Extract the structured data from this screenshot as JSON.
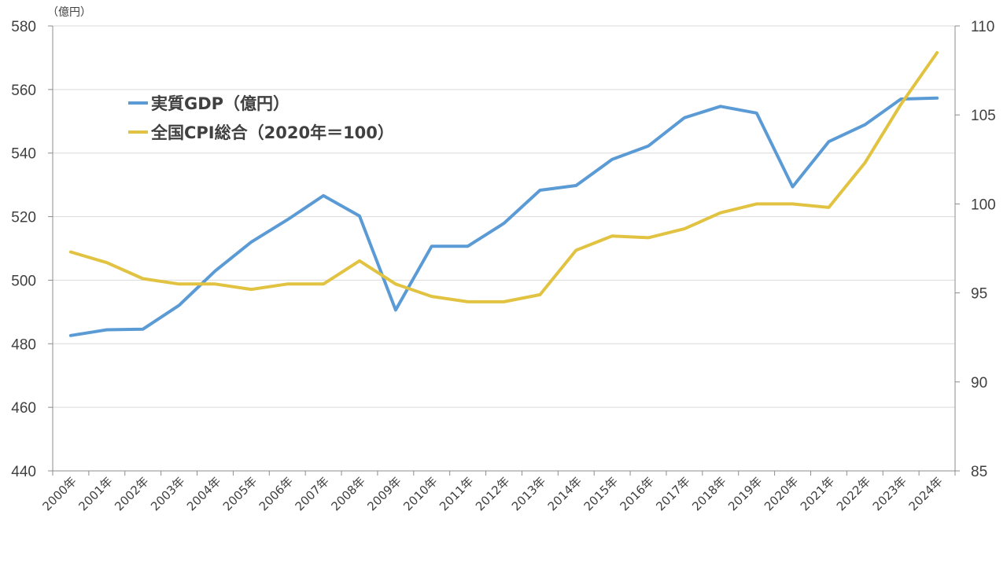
{
  "chart_data": {
    "type": "line",
    "y_unit_label": "（億円）",
    "categories": [
      "2000年",
      "2001年",
      "2002年",
      "2003年",
      "2004年",
      "2005年",
      "2006年",
      "2007年",
      "2008年",
      "2009年",
      "2010年",
      "2011年",
      "2012年",
      "2013年",
      "2014年",
      "2015年",
      "2016年",
      "2017年",
      "2018年",
      "2019年",
      "2020年",
      "2021年",
      "2022年",
      "2023年",
      "2024年"
    ],
    "y_left": {
      "min": 440,
      "max": 580,
      "step": 20,
      "ticks": [
        "440",
        "460",
        "480",
        "500",
        "520",
        "540",
        "560",
        "580"
      ]
    },
    "y_right": {
      "min": 85,
      "max": 110,
      "step": 5,
      "ticks": [
        "85",
        "90",
        "95",
        "100",
        "105",
        "110"
      ]
    },
    "grid": true,
    "legend_position": "upper-left",
    "series": [
      {
        "name": "実質GDP（億円）",
        "axis": "left",
        "color": "#5B9BD5",
        "values": [
          482.6,
          484.4,
          484.6,
          492.1,
          502.9,
          512.0,
          519.0,
          526.6,
          520.2,
          490.6,
          510.7,
          510.7,
          517.9,
          528.3,
          529.8,
          538.0,
          542.2,
          551.1,
          554.7,
          552.6,
          529.4,
          543.6,
          548.9,
          557.0,
          557.3
        ]
      },
      {
        "name": "全国CPI総合（2020年＝100）",
        "axis": "right",
        "color": "#E1C341",
        "values": [
          97.3,
          96.7,
          95.8,
          95.5,
          95.5,
          95.2,
          95.5,
          95.5,
          96.8,
          95.5,
          94.8,
          94.5,
          94.5,
          94.9,
          97.4,
          98.2,
          98.1,
          98.6,
          99.5,
          100.0,
          100.0,
          99.8,
          102.3,
          105.6,
          108.5
        ]
      }
    ]
  }
}
